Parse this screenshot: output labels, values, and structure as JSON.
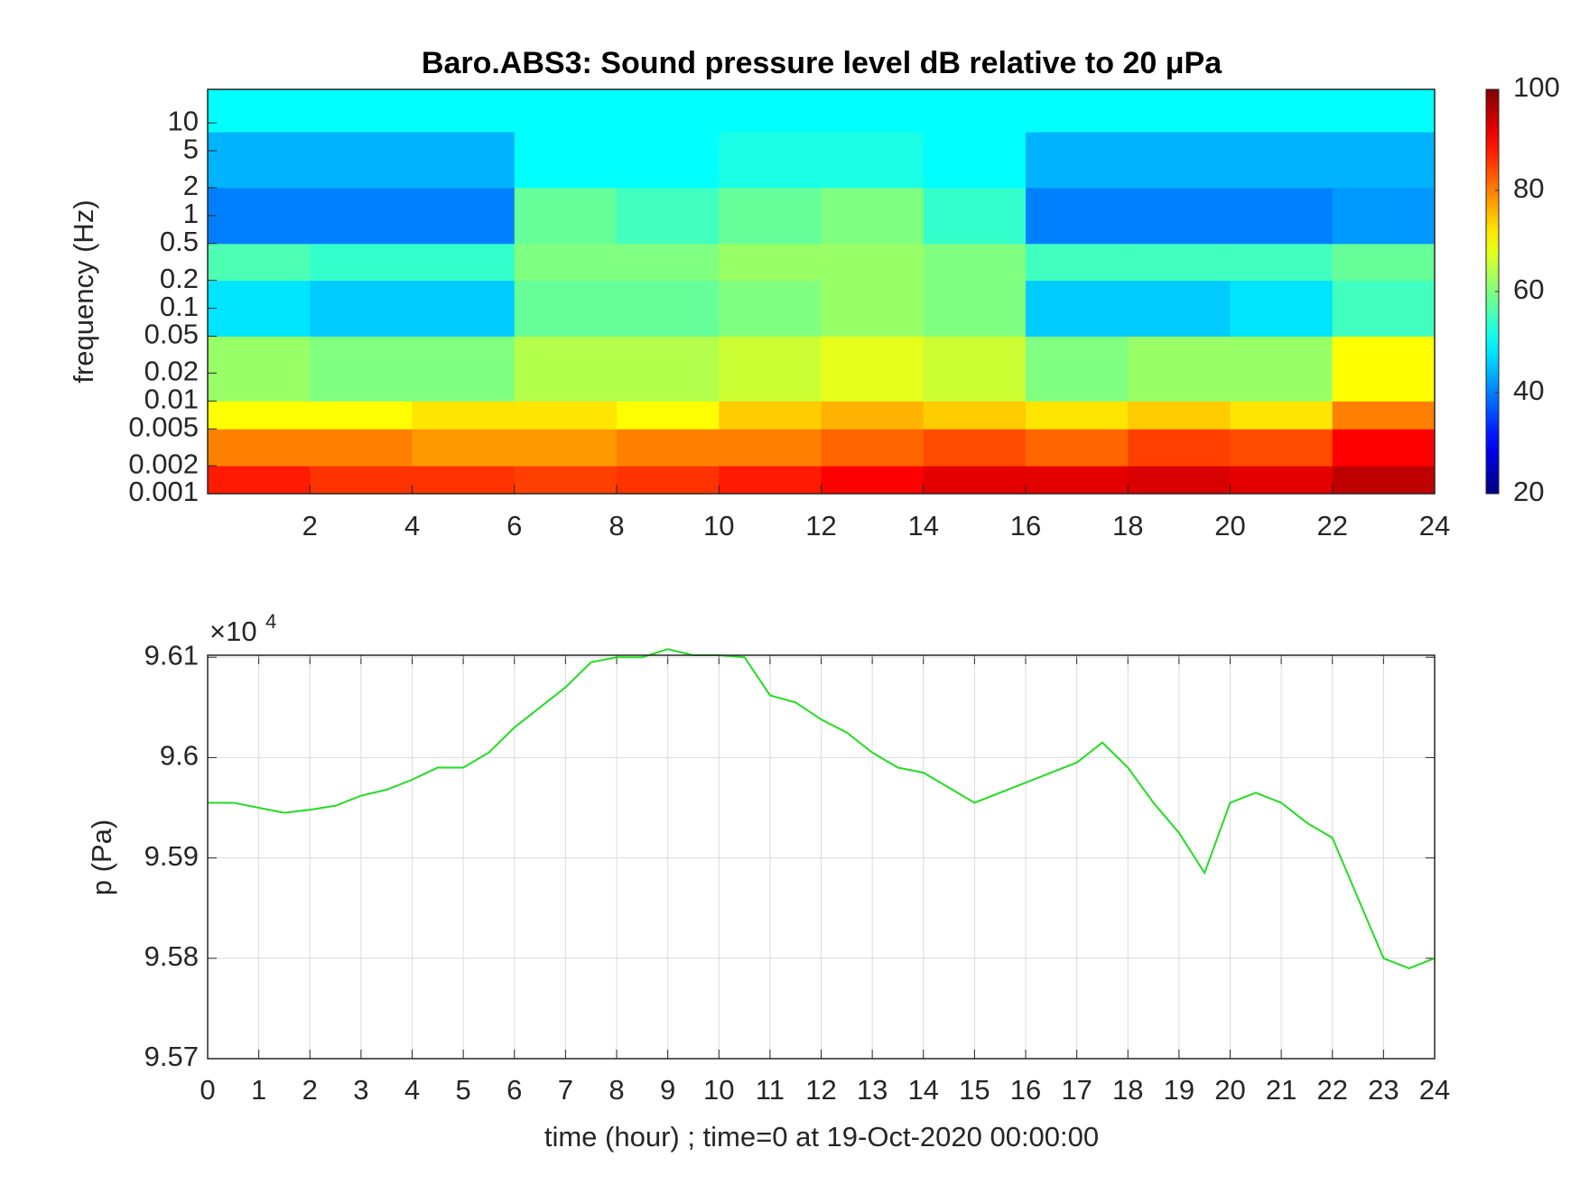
{
  "chart_data": [
    {
      "type": "heatmap",
      "title": "Baro.ABS3: Sound pressure level dB relative to 20 μPa",
      "y_label": "frequency (Hz)",
      "colormap": "jet",
      "ylog": true,
      "xlim": [
        0,
        24
      ],
      "xticks": [
        2,
        4,
        6,
        8,
        10,
        12,
        14,
        16,
        18,
        20,
        22,
        24
      ],
      "ylim": [
        0.001,
        23
      ],
      "yticks": [
        0.001,
        0.002,
        0.005,
        0.01,
        0.02,
        0.05,
        0.1,
        0.2,
        0.5,
        1,
        2,
        5,
        10
      ],
      "x_edges": [
        0,
        2,
        4,
        6,
        8,
        10,
        12,
        14,
        16,
        18,
        20,
        22,
        24
      ],
      "y_edges": [
        0.001,
        0.002,
        0.005,
        0.01,
        0.05,
        0.2,
        0.5,
        2,
        8,
        23
      ],
      "values": [
        [
          88,
          86,
          86,
          85,
          86,
          88,
          90,
          92,
          92,
          93,
          92,
          95
        ],
        [
          80,
          80,
          78,
          78,
          80,
          80,
          82,
          84,
          82,
          85,
          84,
          90
        ],
        [
          70,
          70,
          72,
          72,
          70,
          74,
          76,
          74,
          72,
          74,
          72,
          80
        ],
        [
          62,
          60,
          60,
          64,
          64,
          66,
          68,
          66,
          60,
          62,
          62,
          70
        ],
        [
          48,
          46,
          46,
          58,
          58,
          60,
          62,
          60,
          46,
          46,
          48,
          55
        ],
        [
          56,
          54,
          54,
          60,
          60,
          62,
          62,
          60,
          55,
          55,
          55,
          58
        ],
        [
          40,
          40,
          40,
          58,
          55,
          58,
          60,
          54,
          40,
          40,
          40,
          42
        ],
        [
          44,
          44,
          44,
          50,
          50,
          52,
          52,
          50,
          44,
          44,
          44,
          44
        ],
        [
          50,
          50,
          50,
          50,
          50,
          50,
          50,
          50,
          50,
          50,
          50,
          50
        ]
      ],
      "clim": [
        20,
        100
      ],
      "colorbar_ticks": [
        20,
        40,
        60,
        80,
        100
      ]
    },
    {
      "type": "line",
      "x_label": "time (hour) ; time=0 at 19-Oct-2020 00:00:00",
      "y_label": "p (Pa)",
      "y_exponent_base": "×10",
      "y_exponent": 4,
      "grid": true,
      "xlim": [
        0,
        24
      ],
      "xticks": [
        0,
        1,
        2,
        3,
        4,
        5,
        6,
        7,
        8,
        9,
        10,
        11,
        12,
        13,
        14,
        15,
        16,
        17,
        18,
        19,
        20,
        21,
        22,
        23,
        24
      ],
      "ylim": [
        95700,
        96102
      ],
      "yticks": [
        {
          "value": 95700,
          "label": "9.57"
        },
        {
          "value": 95800,
          "label": "9.58"
        },
        {
          "value": 95900,
          "label": "9.59"
        },
        {
          "value": 96000,
          "label": "9.6"
        },
        {
          "value": 96100,
          "label": "9.61"
        }
      ],
      "x": [
        0,
        0.5,
        1,
        1.5,
        2,
        2.5,
        3,
        3.5,
        4,
        4.5,
        5,
        5.5,
        6,
        6.5,
        7,
        7.5,
        8,
        8.5,
        9,
        9.5,
        10,
        10.5,
        11,
        11.5,
        12,
        12.5,
        13,
        13.5,
        14,
        14.5,
        15,
        15.5,
        16,
        16.5,
        17,
        17.5,
        18,
        18.5,
        19,
        19.5,
        20,
        20.5,
        21,
        21.5,
        22,
        22.5,
        23,
        23.5,
        24
      ],
      "series": [
        {
          "color": "#22dd22",
          "values": [
            95955,
            95955,
            95950,
            95945,
            95948,
            95952,
            95962,
            95968,
            95978,
            95990,
            95990,
            96005,
            96030,
            96050,
            96070,
            96095,
            96100,
            96100,
            96108,
            96102,
            96102,
            96100,
            96062,
            96055,
            96038,
            96025,
            96005,
            95990,
            95985,
            95970,
            95955,
            95965,
            95975,
            95985,
            95995,
            96015,
            95990,
            95955,
            95925,
            95885,
            95955,
            95965,
            95955,
            95935,
            95920,
            95860,
            95800,
            95790,
            95800
          ]
        }
      ]
    }
  ]
}
